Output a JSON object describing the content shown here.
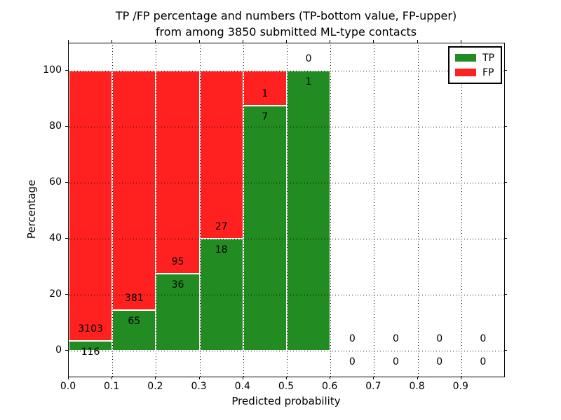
{
  "figure": {
    "title_line1": "TP /FP percentage and numbers (TP-bottom value, FP-upper)",
    "title_line2": "from among 3850 submitted ML-type contacts"
  },
  "chart_data": {
    "type": "bar",
    "subtype": "stacked-percentage",
    "title": "TP /FP percentage and numbers (TP-bottom value, FP-upper) from among 3850 submitted ML-type contacts",
    "xlabel": "Predicted probability",
    "ylabel": "Percentage",
    "total_contacts": 3850,
    "x_tick_labels": [
      "0.0",
      "0.1",
      "0.2",
      "0.3",
      "0.4",
      "0.5",
      "0.6",
      "0.7",
      "0.8",
      "0.9"
    ],
    "y_ticks": [
      0,
      20,
      40,
      60,
      80,
      100
    ],
    "y_tick_labels": [
      "0",
      "20",
      "40",
      "60",
      "80",
      "100"
    ],
    "xlim": [
      0.0,
      1.0
    ],
    "ylim": [
      -9.5,
      109.75
    ],
    "grid": true,
    "bin_width": 0.1,
    "bin_left_edges": [
      0.0,
      0.1,
      0.2,
      0.3,
      0.4,
      0.5,
      0.6,
      0.7,
      0.8,
      0.9
    ],
    "series": [
      {
        "name": "TP",
        "color": "#228b22",
        "counts": [
          116,
          65,
          36,
          18,
          7,
          1,
          0,
          0,
          0,
          0
        ]
      },
      {
        "name": "FP",
        "color": "#ff2020",
        "counts": [
          3103,
          381,
          95,
          27,
          1,
          0,
          0,
          0,
          0,
          0
        ]
      }
    ],
    "tp_percent": [
      3.6,
      14.6,
      27.5,
      40.0,
      87.5,
      100.0,
      0,
      0,
      0,
      0
    ],
    "legend_position": "upper right"
  }
}
